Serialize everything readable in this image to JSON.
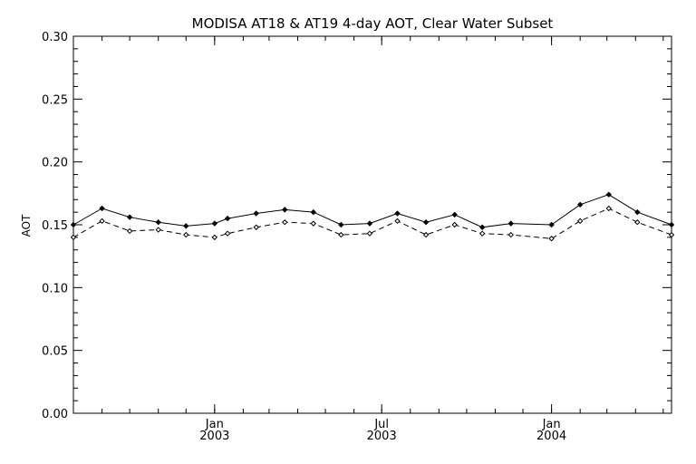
{
  "chart_data": {
    "type": "line",
    "title": "MODISA AT18 & AT19 4-day AOT, Clear Water Subset",
    "xlabel": "",
    "ylabel": "AOT",
    "ylim": [
      0.0,
      0.3
    ],
    "xlim": [
      "2002-08-01",
      "2004-05-10"
    ],
    "y_ticks": [
      "0.00",
      "0.05",
      "0.10",
      "0.15",
      "0.20",
      "0.25",
      "0.30"
    ],
    "x_ticks": [
      {
        "date": "2003-01-01",
        "month": "Jan",
        "year": "2003"
      },
      {
        "date": "2003-07-01",
        "month": "Jul",
        "year": "2003"
      },
      {
        "date": "2004-01-01",
        "month": "Jan",
        "year": "2004"
      }
    ],
    "grid": false,
    "series": [
      {
        "line_style": "solid",
        "marker": "diamond",
        "color": "#000000",
        "points": [
          {
            "x": "2002-08-01",
            "y": 0.15
          },
          {
            "x": "2002-09-01",
            "y": 0.163
          },
          {
            "x": "2002-10-01",
            "y": 0.156
          },
          {
            "x": "2002-11-01",
            "y": 0.152
          },
          {
            "x": "2002-12-01",
            "y": 0.149
          },
          {
            "x": "2003-01-01",
            "y": 0.151
          },
          {
            "x": "2003-01-15",
            "y": 0.155
          },
          {
            "x": "2003-02-15",
            "y": 0.159
          },
          {
            "x": "2003-03-18",
            "y": 0.162
          },
          {
            "x": "2003-04-18",
            "y": 0.16
          },
          {
            "x": "2003-05-18",
            "y": 0.15
          },
          {
            "x": "2003-06-18",
            "y": 0.151
          },
          {
            "x": "2003-07-18",
            "y": 0.159
          },
          {
            "x": "2003-08-18",
            "y": 0.152
          },
          {
            "x": "2003-09-18",
            "y": 0.158
          },
          {
            "x": "2003-10-18",
            "y": 0.148
          },
          {
            "x": "2003-11-18",
            "y": 0.151
          },
          {
            "x": "2004-01-01",
            "y": 0.15
          },
          {
            "x": "2004-02-01",
            "y": 0.166
          },
          {
            "x": "2004-03-03",
            "y": 0.174
          },
          {
            "x": "2004-04-03",
            "y": 0.16
          },
          {
            "x": "2004-05-10",
            "y": 0.15
          }
        ]
      },
      {
        "line_style": "dashed",
        "marker": "diamond",
        "color": "#000000",
        "points": [
          {
            "x": "2002-08-01",
            "y": 0.14
          },
          {
            "x": "2002-09-01",
            "y": 0.153
          },
          {
            "x": "2002-10-01",
            "y": 0.145
          },
          {
            "x": "2002-11-01",
            "y": 0.146
          },
          {
            "x": "2002-12-01",
            "y": 0.142
          },
          {
            "x": "2003-01-01",
            "y": 0.14
          },
          {
            "x": "2003-01-15",
            "y": 0.143
          },
          {
            "x": "2003-02-15",
            "y": 0.148
          },
          {
            "x": "2003-03-18",
            "y": 0.152
          },
          {
            "x": "2003-04-18",
            "y": 0.151
          },
          {
            "x": "2003-05-18",
            "y": 0.142
          },
          {
            "x": "2003-06-18",
            "y": 0.143
          },
          {
            "x": "2003-07-18",
            "y": 0.153
          },
          {
            "x": "2003-08-18",
            "y": 0.142
          },
          {
            "x": "2003-09-18",
            "y": 0.15
          },
          {
            "x": "2003-10-18",
            "y": 0.143
          },
          {
            "x": "2003-11-18",
            "y": 0.142
          },
          {
            "x": "2004-01-01",
            "y": 0.139
          },
          {
            "x": "2004-02-01",
            "y": 0.153
          },
          {
            "x": "2004-03-03",
            "y": 0.163
          },
          {
            "x": "2004-04-03",
            "y": 0.152
          },
          {
            "x": "2004-05-10",
            "y": 0.142
          }
        ]
      }
    ]
  }
}
